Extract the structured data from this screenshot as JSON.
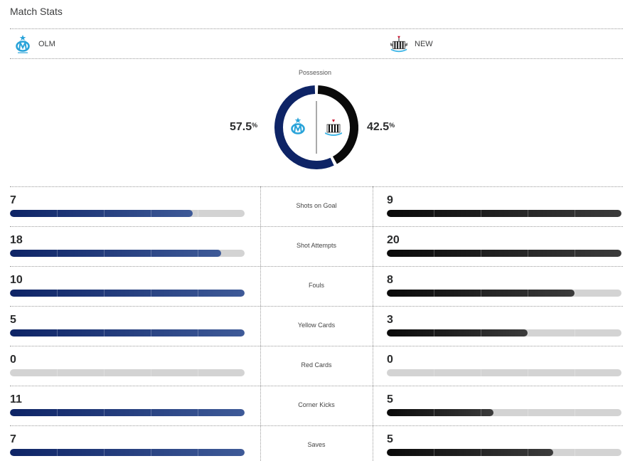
{
  "header": {
    "title": "Match Stats"
  },
  "teams": {
    "home": {
      "abbr": "OLM",
      "logo": "om-crest-icon",
      "color": "#0e2466",
      "accent": "#29a3d9"
    },
    "away": {
      "abbr": "NEW",
      "logo": "magpie-crest-icon",
      "color": "#0a0a0a"
    }
  },
  "possession": {
    "label": "Possession",
    "home_value": "57.5",
    "away_value": "42.5",
    "unit": "%",
    "home_fraction": 0.575
  },
  "stats": [
    {
      "label": "Shots on Goal",
      "home": "7",
      "away": "9",
      "home_fill": 0.78,
      "away_fill": 1.0
    },
    {
      "label": "Shot Attempts",
      "home": "18",
      "away": "20",
      "home_fill": 0.9,
      "away_fill": 1.0
    },
    {
      "label": "Fouls",
      "home": "10",
      "away": "8",
      "home_fill": 1.0,
      "away_fill": 0.8
    },
    {
      "label": "Yellow Cards",
      "home": "5",
      "away": "3",
      "home_fill": 1.0,
      "away_fill": 0.6
    },
    {
      "label": "Red Cards",
      "home": "0",
      "away": "0",
      "home_fill": 0.0,
      "away_fill": 0.0
    },
    {
      "label": "Corner Kicks",
      "home": "11",
      "away": "5",
      "home_fill": 1.0,
      "away_fill": 0.455
    },
    {
      "label": "Saves",
      "home": "7",
      "away": "5",
      "home_fill": 1.0,
      "away_fill": 0.71
    }
  ]
}
